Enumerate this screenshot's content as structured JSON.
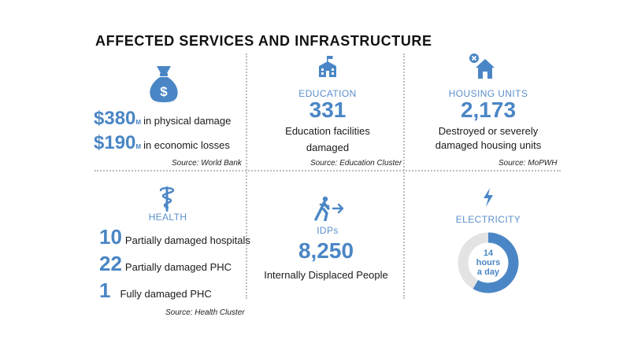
{
  "title": "AFFECTED SERVICES AND INFRASTRUCTURE",
  "colors": {
    "accent": "#4a86c5",
    "donut_track": "#e3e3e3",
    "divider": "#bdbdbd"
  },
  "damage": {
    "icon": "money-bag-icon",
    "items": [
      {
        "value": "$380",
        "suffix": "M",
        "label": "in physical damage"
      },
      {
        "value": "$190",
        "suffix": "M",
        "label": "in economic losses"
      }
    ],
    "source": "Source: World Bank"
  },
  "education": {
    "icon": "school-icon",
    "category": "EDUCATION",
    "value": "331",
    "desc_line1": "Education facilities",
    "desc_line2": "damaged",
    "source": "Source: Education Cluster"
  },
  "housing": {
    "icon": "damaged-house-icon",
    "category": "HOUSING UNITS",
    "value": "2,173",
    "desc_line1": "Destroyed or severely",
    "desc_line2": "damaged housing units",
    "source": "Source: MoPWH"
  },
  "health": {
    "icon": "caduceus-icon",
    "category": "HEALTH",
    "items": [
      {
        "value": "10",
        "label": "Partially damaged hospitals"
      },
      {
        "value": "22",
        "label": "Partially damaged PHC"
      },
      {
        "value": "1",
        "label": "Fully damaged PHC"
      }
    ],
    "source": "Source: Health Cluster"
  },
  "idps": {
    "icon": "person-leaving-icon",
    "category": "IDPs",
    "value": "8,250",
    "desc": "Internally Displaced People"
  },
  "electricity": {
    "icon": "lightning-icon",
    "category": "ELECTRICITY",
    "line1": "14",
    "line2": "hours",
    "line3": "a day",
    "fraction": 0.5833
  }
}
